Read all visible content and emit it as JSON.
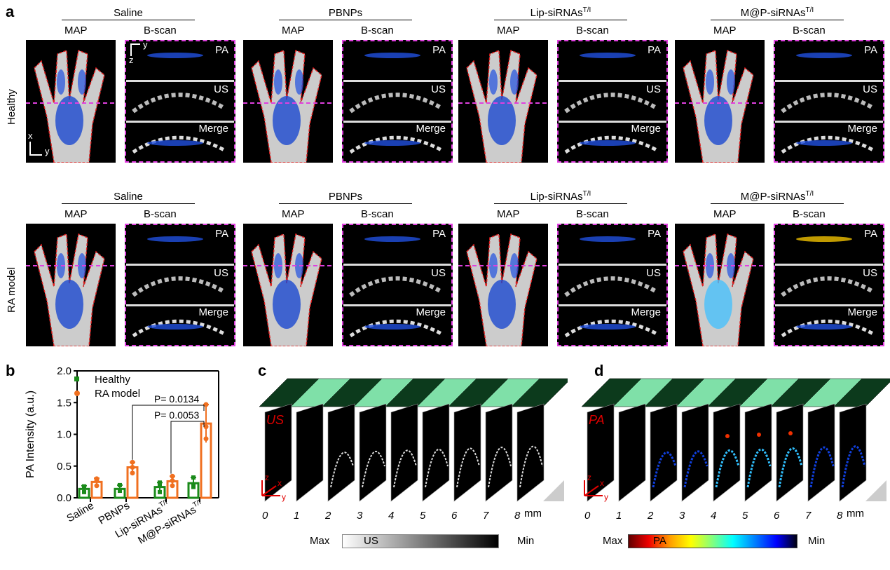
{
  "panel_labels": {
    "a": "a",
    "b": "b",
    "c": "c",
    "d": "d"
  },
  "panel_a": {
    "rows": [
      {
        "label": "Healthy"
      },
      {
        "label": "RA model"
      }
    ],
    "groups": [
      {
        "title": "Saline",
        "sup": ""
      },
      {
        "title": "PBNPs",
        "sup": ""
      },
      {
        "title": "Lip-siRNAs",
        "sup": "T/I"
      },
      {
        "title": "M@P-siRNAs",
        "sup": "T/I"
      }
    ],
    "map_label": "MAP",
    "bscan_label": "B-scan",
    "bscan_rows": [
      "PA",
      "US",
      "Merge"
    ],
    "axes_map": {
      "x": "x",
      "y": "y"
    },
    "axes_bscan": {
      "y": "y",
      "z": "z"
    },
    "colors": {
      "outline": "#e02020",
      "dashed": "#e040e0"
    }
  },
  "chart_data": {
    "type": "bar",
    "ylabel": "PA Intensity (a.u.)",
    "ylim": [
      0,
      2.0
    ],
    "yticks": [
      "0.0",
      "0.5",
      "1.0",
      "1.5",
      "2.0"
    ],
    "categories": [
      "Saline",
      "PBNPs",
      "Lip-siRNAs",
      "M@P-siRNAs"
    ],
    "category_sups": [
      "",
      "",
      "T/I",
      "T/I"
    ],
    "series": [
      {
        "name": "Healthy",
        "color": "#1a8a1a",
        "values": [
          0.14,
          0.14,
          0.17,
          0.23
        ],
        "errors": [
          0.05,
          0.06,
          0.07,
          0.09
        ],
        "points": [
          [
            0.09,
            0.17,
            0.18
          ],
          [
            0.11,
            0.12,
            0.2
          ],
          [
            0.09,
            0.2,
            0.24
          ],
          [
            0.17,
            0.2,
            0.32
          ]
        ]
      },
      {
        "name": "RA model",
        "color": "#f07020",
        "values": [
          0.25,
          0.48,
          0.26,
          1.17
        ],
        "errors": [
          0.06,
          0.08,
          0.08,
          0.3
        ],
        "points": [
          [
            0.19,
            0.28,
            0.3
          ],
          [
            0.39,
            0.48,
            0.56
          ],
          [
            0.19,
            0.27,
            0.34
          ],
          [
            0.93,
            1.12,
            1.47
          ]
        ]
      }
    ],
    "annotations": [
      {
        "text": "P= 0.0134",
        "from": "PBNPs",
        "to": "M@P-siRNAs"
      },
      {
        "text": "P= 0.0053",
        "from": "Lip-siRNAs",
        "to": "M@P-siRNAs"
      }
    ],
    "legend": "top-left"
  },
  "panel_c": {
    "tag": "US",
    "ticks": [
      "0",
      "1",
      "2",
      "3",
      "4",
      "5",
      "6",
      "7",
      "8"
    ],
    "unit": "mm",
    "colorbar": {
      "max": "Max",
      "min": "Min",
      "label": "US"
    },
    "axes": {
      "x": "x",
      "y": "y",
      "z": "z"
    }
  },
  "panel_d": {
    "tag": "PA",
    "ticks": [
      "0",
      "1",
      "2",
      "3",
      "4",
      "5",
      "6",
      "7",
      "8"
    ],
    "unit": "mm",
    "colorbar": {
      "max": "Max",
      "min": "Min",
      "label": "PA"
    },
    "axes": {
      "x": "x",
      "y": "y",
      "z": "z"
    }
  }
}
